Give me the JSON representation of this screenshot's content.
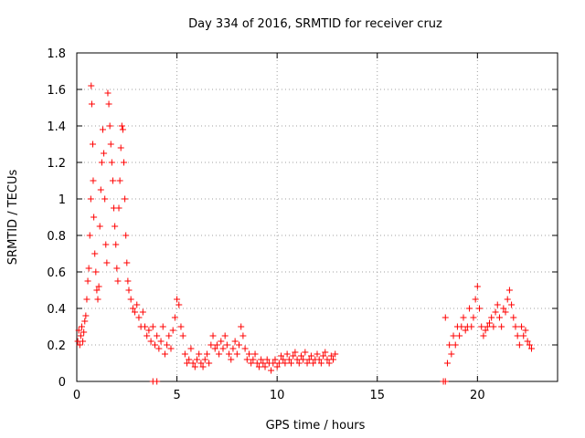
{
  "chart_data": {
    "type": "scatter",
    "title": "Day 334 of 2016, SRMTID for receiver cruz",
    "xlabel": "GPS time / hours",
    "ylabel": "SRMTID / TECUs",
    "xlim": [
      0,
      24
    ],
    "ylim": [
      0,
      1.8
    ],
    "xticks": [
      0,
      5,
      10,
      15,
      20
    ],
    "yticks": [
      0,
      0.2,
      0.4,
      0.6,
      0.8,
      1,
      1.2,
      1.4,
      1.6,
      1.8
    ],
    "xtick_labels": [
      "0",
      "5",
      "10",
      "15",
      "20"
    ],
    "ytick_labels": [
      "0",
      "0.2",
      "0.4",
      "0.6",
      "0.8",
      "1",
      "1.2",
      "1.4",
      "1.6",
      "1.8"
    ],
    "grid": true,
    "marker": "plus",
    "color": "#ff0000",
    "series": [
      {
        "name": "SRMTID",
        "points": [
          [
            0.05,
            0.22
          ],
          [
            0.1,
            0.28
          ],
          [
            0.15,
            0.2
          ],
          [
            0.2,
            0.25
          ],
          [
            0.25,
            0.3
          ],
          [
            0.3,
            0.22
          ],
          [
            0.35,
            0.27
          ],
          [
            0.4,
            0.33
          ],
          [
            0.45,
            0.36
          ],
          [
            0.5,
            0.45
          ],
          [
            0.55,
            0.55
          ],
          [
            0.6,
            0.62
          ],
          [
            0.65,
            0.8
          ],
          [
            0.7,
            1.0
          ],
          [
            0.72,
            1.62
          ],
          [
            0.75,
            1.52
          ],
          [
            0.8,
            1.3
          ],
          [
            0.82,
            1.1
          ],
          [
            0.85,
            0.9
          ],
          [
            0.9,
            0.7
          ],
          [
            0.95,
            0.6
          ],
          [
            1.0,
            0.5
          ],
          [
            1.05,
            0.45
          ],
          [
            1.1,
            0.52
          ],
          [
            1.15,
            0.85
          ],
          [
            1.2,
            1.05
          ],
          [
            1.25,
            1.2
          ],
          [
            1.3,
            1.38
          ],
          [
            1.35,
            1.25
          ],
          [
            1.4,
            1.0
          ],
          [
            1.45,
            0.75
          ],
          [
            1.5,
            0.65
          ],
          [
            1.55,
            1.58
          ],
          [
            1.6,
            1.52
          ],
          [
            1.65,
            1.4
          ],
          [
            1.7,
            1.3
          ],
          [
            1.75,
            1.2
          ],
          [
            1.8,
            1.1
          ],
          [
            1.85,
            0.95
          ],
          [
            1.9,
            0.85
          ],
          [
            1.95,
            0.75
          ],
          [
            2.0,
            0.62
          ],
          [
            2.05,
            0.55
          ],
          [
            2.1,
            0.95
          ],
          [
            2.15,
            1.1
          ],
          [
            2.2,
            1.28
          ],
          [
            2.25,
            1.4
          ],
          [
            2.3,
            1.38
          ],
          [
            2.35,
            1.2
          ],
          [
            2.4,
            1.0
          ],
          [
            2.45,
            0.8
          ],
          [
            2.5,
            0.65
          ],
          [
            2.55,
            0.55
          ],
          [
            2.6,
            0.5
          ],
          [
            2.7,
            0.45
          ],
          [
            2.8,
            0.4
          ],
          [
            2.9,
            0.38
          ],
          [
            3.0,
            0.42
          ],
          [
            3.1,
            0.35
          ],
          [
            3.2,
            0.3
          ],
          [
            3.3,
            0.38
          ],
          [
            3.4,
            0.3
          ],
          [
            3.5,
            0.25
          ],
          [
            3.6,
            0.28
          ],
          [
            3.7,
            0.22
          ],
          [
            3.8,
            0.3
          ],
          [
            3.9,
            0.2
          ],
          [
            4.0,
            0.25
          ],
          [
            4.1,
            0.18
          ],
          [
            4.2,
            0.22
          ],
          [
            4.3,
            0.3
          ],
          [
            4.4,
            0.15
          ],
          [
            4.5,
            0.2
          ],
          [
            4.6,
            0.25
          ],
          [
            4.7,
            0.18
          ],
          [
            4.8,
            0.28
          ],
          [
            4.9,
            0.35
          ],
          [
            5.0,
            0.45
          ],
          [
            5.1,
            0.42
          ],
          [
            5.2,
            0.3
          ],
          [
            5.3,
            0.25
          ],
          [
            5.4,
            0.15
          ],
          [
            5.5,
            0.1
          ],
          [
            5.6,
            0.12
          ],
          [
            5.7,
            0.18
          ],
          [
            5.8,
            0.1
          ],
          [
            5.9,
            0.08
          ],
          [
            6.0,
            0.12
          ],
          [
            6.1,
            0.15
          ],
          [
            6.2,
            0.1
          ],
          [
            6.3,
            0.08
          ],
          [
            6.4,
            0.12
          ],
          [
            6.5,
            0.15
          ],
          [
            6.6,
            0.1
          ],
          [
            6.7,
            0.2
          ],
          [
            6.8,
            0.25
          ],
          [
            6.9,
            0.18
          ],
          [
            7.0,
            0.2
          ],
          [
            7.1,
            0.15
          ],
          [
            7.2,
            0.22
          ],
          [
            7.3,
            0.18
          ],
          [
            7.4,
            0.25
          ],
          [
            7.5,
            0.2
          ],
          [
            7.6,
            0.15
          ],
          [
            7.7,
            0.12
          ],
          [
            7.8,
            0.18
          ],
          [
            7.9,
            0.22
          ],
          [
            8.0,
            0.15
          ],
          [
            8.1,
            0.2
          ],
          [
            8.2,
            0.3
          ],
          [
            8.3,
            0.25
          ],
          [
            8.4,
            0.18
          ],
          [
            8.5,
            0.12
          ],
          [
            8.6,
            0.15
          ],
          [
            8.7,
            0.1
          ],
          [
            8.8,
            0.12
          ],
          [
            8.9,
            0.15
          ],
          [
            9.0,
            0.1
          ],
          [
            9.1,
            0.08
          ],
          [
            9.2,
            0.12
          ],
          [
            9.3,
            0.1
          ],
          [
            9.4,
            0.08
          ],
          [
            9.5,
            0.12
          ],
          [
            9.6,
            0.1
          ],
          [
            9.7,
            0.06
          ],
          [
            9.8,
            0.1
          ],
          [
            9.9,
            0.12
          ],
          [
            10.0,
            0.08
          ],
          [
            10.1,
            0.1
          ],
          [
            10.2,
            0.14
          ],
          [
            10.3,
            0.12
          ],
          [
            10.4,
            0.1
          ],
          [
            10.5,
            0.15
          ],
          [
            10.6,
            0.12
          ],
          [
            10.7,
            0.1
          ],
          [
            10.8,
            0.14
          ],
          [
            10.9,
            0.16
          ],
          [
            11.0,
            0.12
          ],
          [
            11.1,
            0.1
          ],
          [
            11.2,
            0.14
          ],
          [
            11.3,
            0.12
          ],
          [
            11.4,
            0.16
          ],
          [
            11.5,
            0.1
          ],
          [
            11.6,
            0.12
          ],
          [
            11.7,
            0.14
          ],
          [
            11.8,
            0.1
          ],
          [
            11.9,
            0.12
          ],
          [
            12.0,
            0.15
          ],
          [
            12.1,
            0.12
          ],
          [
            12.2,
            0.1
          ],
          [
            12.3,
            0.14
          ],
          [
            12.4,
            0.16
          ],
          [
            12.5,
            0.12
          ],
          [
            12.6,
            0.1
          ],
          [
            12.7,
            0.14
          ],
          [
            12.8,
            0.12
          ],
          [
            12.9,
            0.15
          ],
          [
            3.8,
            0.0
          ],
          [
            4.0,
            0.0
          ],
          [
            18.3,
            0.0
          ],
          [
            18.4,
            0.0
          ],
          [
            18.4,
            0.35
          ],
          [
            18.5,
            0.1
          ],
          [
            18.6,
            0.2
          ],
          [
            18.7,
            0.15
          ],
          [
            18.8,
            0.25
          ],
          [
            18.9,
            0.2
          ],
          [
            19.0,
            0.3
          ],
          [
            19.1,
            0.25
          ],
          [
            19.2,
            0.3
          ],
          [
            19.3,
            0.35
          ],
          [
            19.4,
            0.28
          ],
          [
            19.5,
            0.3
          ],
          [
            19.6,
            0.4
          ],
          [
            19.7,
            0.3
          ],
          [
            19.8,
            0.35
          ],
          [
            19.9,
            0.45
          ],
          [
            20.0,
            0.52
          ],
          [
            20.1,
            0.4
          ],
          [
            20.2,
            0.3
          ],
          [
            20.3,
            0.25
          ],
          [
            20.4,
            0.28
          ],
          [
            20.5,
            0.3
          ],
          [
            20.6,
            0.32
          ],
          [
            20.7,
            0.35
          ],
          [
            20.8,
            0.3
          ],
          [
            20.9,
            0.38
          ],
          [
            21.0,
            0.42
          ],
          [
            21.1,
            0.35
          ],
          [
            21.2,
            0.3
          ],
          [
            21.3,
            0.4
          ],
          [
            21.4,
            0.38
          ],
          [
            21.5,
            0.45
          ],
          [
            21.6,
            0.5
          ],
          [
            21.7,
            0.42
          ],
          [
            21.8,
            0.35
          ],
          [
            21.9,
            0.3
          ],
          [
            22.0,
            0.25
          ],
          [
            22.1,
            0.2
          ],
          [
            22.2,
            0.3
          ],
          [
            22.3,
            0.25
          ],
          [
            22.4,
            0.28
          ],
          [
            22.5,
            0.22
          ],
          [
            22.6,
            0.2
          ],
          [
            22.7,
            0.18
          ]
        ]
      }
    ]
  }
}
